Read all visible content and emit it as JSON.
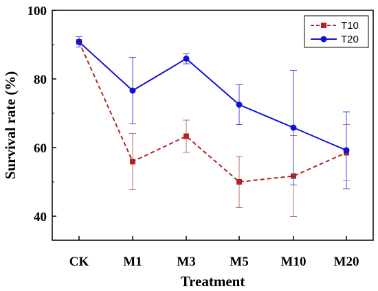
{
  "chart_data": {
    "type": "line",
    "title": "",
    "xlabel": "Treatment",
    "ylabel": "Survival rate (%)",
    "categories": [
      "CK",
      "M1",
      "M3",
      "M5",
      "M10",
      "M20"
    ],
    "ylim": [
      33,
      100
    ],
    "yticks": [
      40,
      60,
      80,
      100
    ],
    "grid": false,
    "legend_position": "top-right",
    "series": [
      {
        "name": "T10",
        "values": [
          90.8,
          55.9,
          63.3,
          50.0,
          51.7,
          58.5
        ],
        "errors": [
          1.5,
          8.2,
          4.7,
          7.5,
          11.8,
          8.2
        ],
        "color": "#b22222",
        "line_style": "dashed",
        "marker": "square"
      },
      {
        "name": "T20",
        "values": [
          90.8,
          76.6,
          85.9,
          72.5,
          65.8,
          59.2
        ],
        "errors": [
          1.5,
          9.7,
          1.5,
          5.8,
          16.7,
          11.2
        ],
        "color": "#1010d8",
        "line_style": "solid",
        "marker": "circle"
      }
    ]
  }
}
